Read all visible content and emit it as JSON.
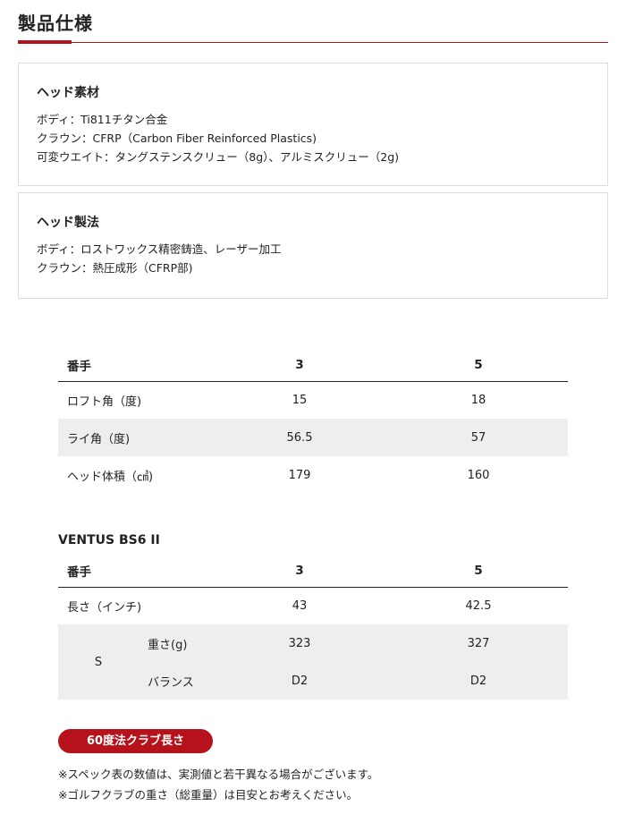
{
  "title": "製品仕様",
  "accent_color": "#b5121b",
  "sections": [
    {
      "heading": "ヘッド素材",
      "lines": [
        "ボディ：Ti811チタン合金",
        "クラウン：CFRP（Carbon Fiber Reinforced Plastics)",
        "可変ウエイト：タングステンスクリュー（8g）、アルミスクリュー（2g)"
      ]
    },
    {
      "heading": "ヘッド製法",
      "lines": [
        "ボディ：ロストワックス精密鋳造、レーザー加工",
        "クラウン：熱圧成形（CFRP部)"
      ]
    }
  ],
  "head_table": {
    "headers": [
      "番手",
      "3",
      "5"
    ],
    "rows": [
      [
        "ロフト角（度)",
        "15",
        "18"
      ],
      [
        "ライ角（度)",
        "56.5",
        "57"
      ],
      [
        "ヘッド体積（㎤)",
        "179",
        "160"
      ]
    ]
  },
  "shaft": {
    "name": "VENTUS BS6 II",
    "headers": [
      "番手",
      "3",
      "5"
    ],
    "length": [
      "長さ（インチ)",
      "43",
      "42.5"
    ],
    "flex": "S",
    "weight": [
      "重さ(g)",
      "323",
      "327"
    ],
    "balance": [
      "バランス",
      "D2",
      "D2"
    ]
  },
  "pill_label": "60度法クラブ長さ",
  "notes": [
    "※スペック表の数値は、実測値と若干異なる場合がございます。",
    "※ゴルフクラブの重さ（総重量）は目安とお考えください。"
  ]
}
